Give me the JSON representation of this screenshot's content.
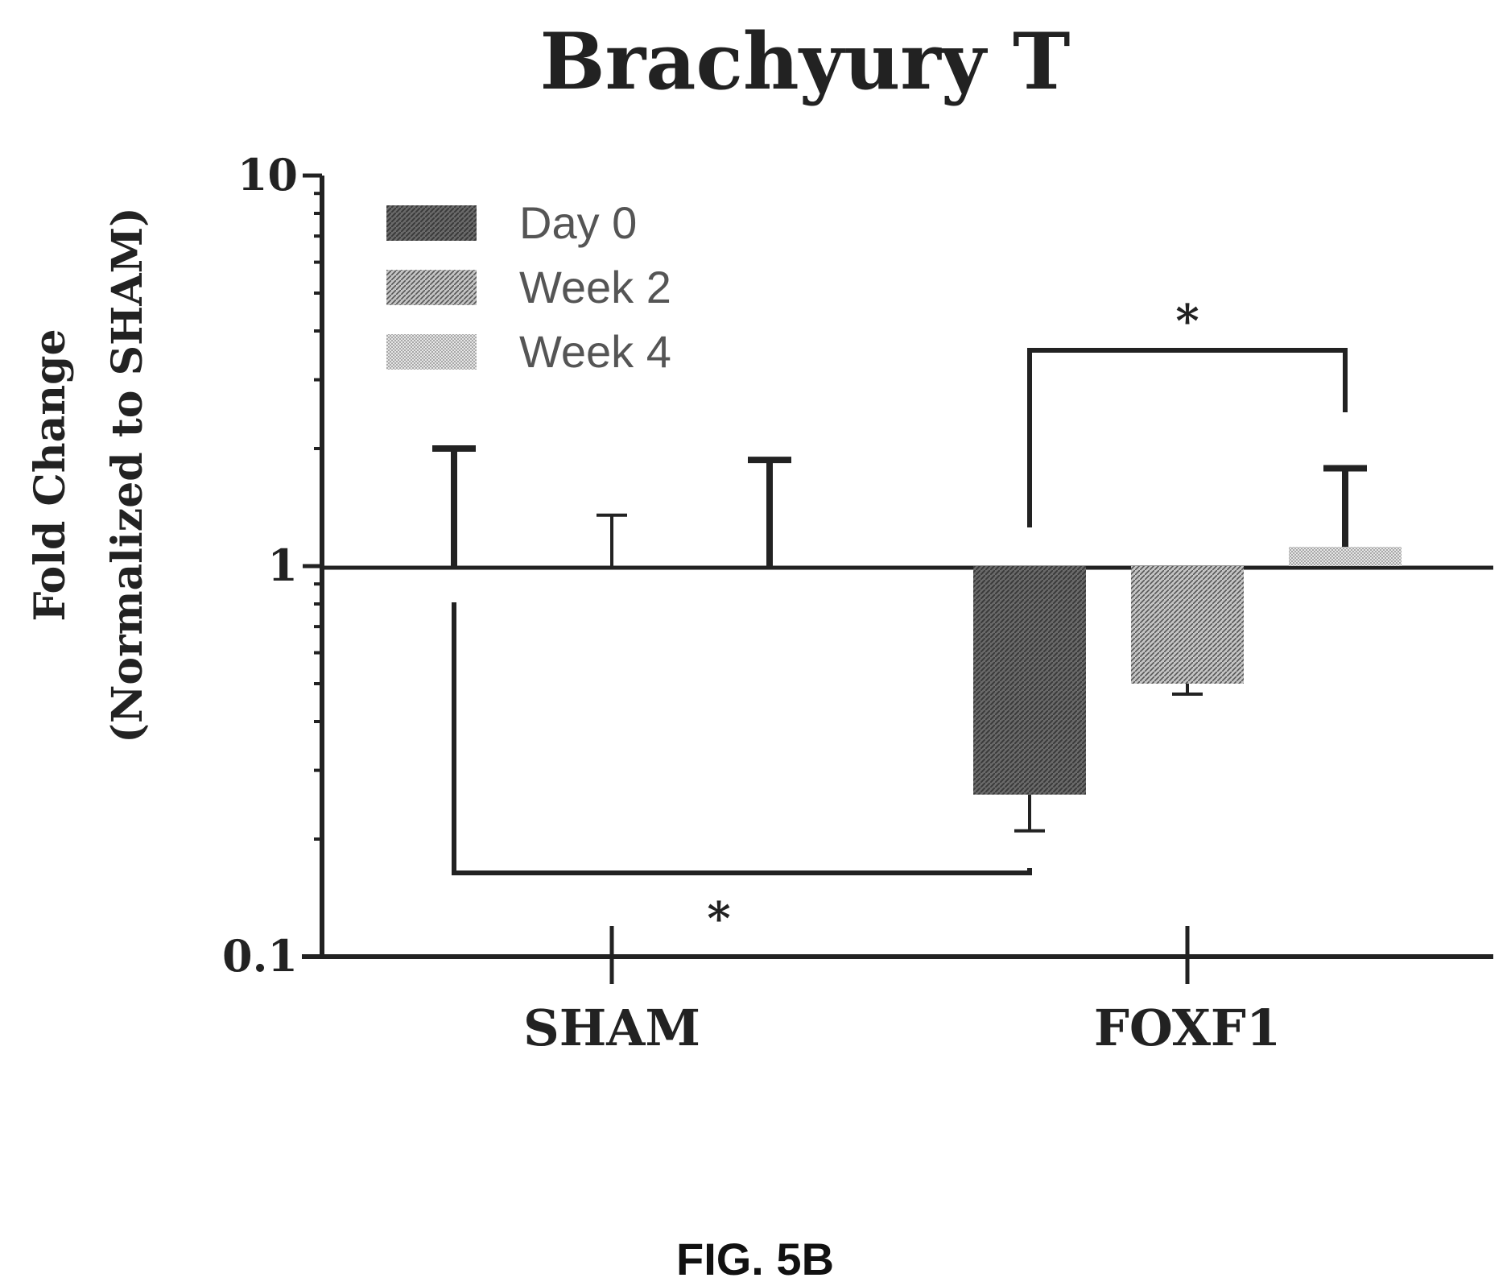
{
  "figure_label": "FIG. 5B",
  "colors": {
    "ink": "#222222",
    "day0": "#5a5a5a",
    "week2": "#9a9a9a",
    "week4": "#d2d2d2"
  },
  "chart_data": {
    "type": "bar",
    "title": "Brachyury T",
    "ylabel_line1": "Fold Change",
    "ylabel_line2": "(Normalized to SHAM)",
    "xlabel": "",
    "yscale": "log",
    "ylim": [
      0.1,
      10
    ],
    "yticks": [
      "10",
      "1",
      "0.1"
    ],
    "baseline": 1,
    "categories": [
      "SHAM",
      "FOXF1"
    ],
    "legend_position": "top-left",
    "series": [
      {
        "name": "Day 0",
        "values": [
          1.0,
          0.26
        ],
        "error": [
          1.0,
          0.05
        ],
        "pattern": "day0"
      },
      {
        "name": "Week 2",
        "values": [
          1.0,
          0.5
        ],
        "error": [
          0.35,
          0.03
        ],
        "pattern": "week2"
      },
      {
        "name": "Week 4",
        "values": [
          1.0,
          1.12
        ],
        "error": [
          0.87,
          0.66
        ],
        "pattern": "week4"
      }
    ],
    "annotations": [
      {
        "text": "*",
        "between": [
          [
            "SHAM",
            "Day 0"
          ],
          [
            "FOXF1",
            "Day 0"
          ]
        ]
      },
      {
        "text": "*",
        "between": [
          [
            "FOXF1",
            "Day 0"
          ],
          [
            "FOXF1",
            "Week 4"
          ]
        ]
      }
    ]
  }
}
